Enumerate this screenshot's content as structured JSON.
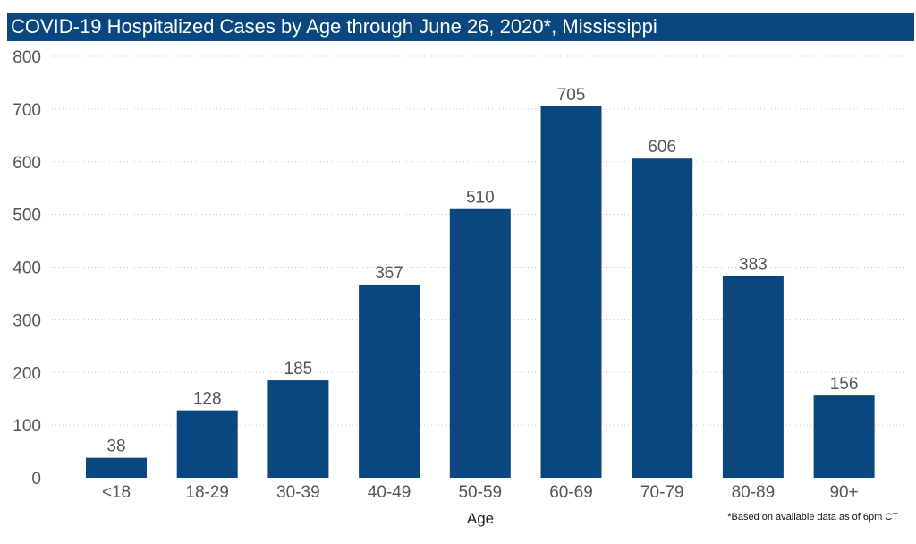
{
  "colors": {
    "bar": "#0b477f",
    "title_background": "#0b477f",
    "title_text": "#ffffff",
    "grid": "#c8c8c8"
  },
  "footnote": "*Based on available data as of 6pm CT",
  "chart_data": {
    "type": "bar",
    "title": "COVID-19 Hospitalized Cases by Age through June 26, 2020*, Mississippi",
    "xlabel": "Age",
    "ylabel": "",
    "categories": [
      "<18",
      "18-29",
      "30-39",
      "40-49",
      "50-59",
      "60-69",
      "70-79",
      "80-89",
      "90+"
    ],
    "values": [
      38,
      128,
      185,
      367,
      510,
      705,
      606,
      383,
      156
    ],
    "ylim": [
      0,
      800
    ],
    "yticks": [
      0,
      100,
      200,
      300,
      400,
      500,
      600,
      700,
      800
    ],
    "grid": "horizontal dotted",
    "data_labels": true,
    "legend": "none"
  }
}
